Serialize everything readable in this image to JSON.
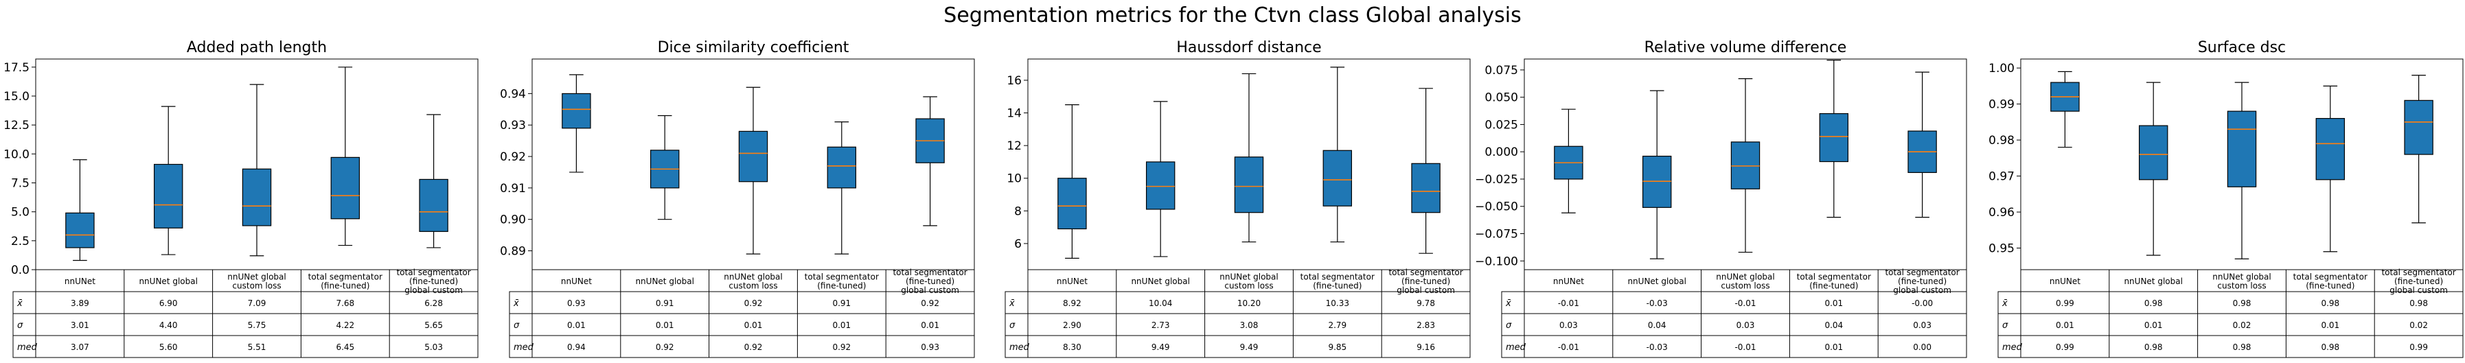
{
  "figure_title": "Segmentation metrics for the Ctvn class Global analysis",
  "row_labels": [
    "x̄",
    "σ",
    "med"
  ],
  "colors": {
    "box_fill": "#1f77b4",
    "median_line": "#ff7f0e",
    "edge": "#000000"
  },
  "chart_data": [
    {
      "type": "boxplot",
      "title": "Added path length",
      "categories": [
        "nnUNet",
        "nnUNet global",
        "nnUNet global custom loss",
        "total segmentator (fine-tuned)",
        "total segmentator (fine-tuned) global custom"
      ],
      "ylim": [
        0,
        18.2
      ],
      "yticks": [
        0.0,
        2.5,
        5.0,
        7.5,
        10.0,
        12.5,
        15.0,
        17.5
      ],
      "ytick_labels": [
        "0.0",
        "2.5",
        "5.0",
        "7.5",
        "10.0",
        "12.5",
        "15.0",
        "17.5"
      ],
      "boxes": [
        {
          "whislo": 0.8,
          "q1": 1.9,
          "med": 3.0,
          "q3": 4.9,
          "whishi": 9.5
        },
        {
          "whislo": 1.3,
          "q1": 3.6,
          "med": 5.6,
          "q3": 9.1,
          "whishi": 14.1
        },
        {
          "whislo": 1.2,
          "q1": 3.8,
          "med": 5.5,
          "q3": 8.7,
          "whishi": 16.0
        },
        {
          "whislo": 2.1,
          "q1": 4.4,
          "med": 6.4,
          "q3": 9.7,
          "whishi": 17.5
        },
        {
          "whislo": 1.9,
          "q1": 3.3,
          "med": 5.0,
          "q3": 7.8,
          "whishi": 13.4
        }
      ],
      "table": [
        [
          "3.89",
          "6.90",
          "7.09",
          "7.68",
          "6.28"
        ],
        [
          "3.01",
          "4.40",
          "5.75",
          "4.22",
          "5.65"
        ],
        [
          "3.07",
          "5.60",
          "5.51",
          "6.45",
          "5.03"
        ]
      ]
    },
    {
      "type": "boxplot",
      "title": "Dice similarity coefficient",
      "categories": [
        "nnUNet",
        "nnUNet global",
        "nnUNet global custom loss",
        "total segmentator (fine-tuned)",
        "total segmentator (fine-tuned) global custom"
      ],
      "ylim": [
        0.884,
        0.951
      ],
      "yticks": [
        0.89,
        0.9,
        0.91,
        0.92,
        0.93,
        0.94
      ],
      "ytick_labels": [
        "0.89",
        "0.90",
        "0.91",
        "0.92",
        "0.93",
        "0.94"
      ],
      "boxes": [
        {
          "whislo": 0.915,
          "q1": 0.929,
          "med": 0.935,
          "q3": 0.94,
          "whishi": 0.946
        },
        {
          "whislo": 0.9,
          "q1": 0.91,
          "med": 0.916,
          "q3": 0.922,
          "whishi": 0.933
        },
        {
          "whislo": 0.889,
          "q1": 0.912,
          "med": 0.921,
          "q3": 0.928,
          "whishi": 0.942
        },
        {
          "whislo": 0.889,
          "q1": 0.91,
          "med": 0.917,
          "q3": 0.923,
          "whishi": 0.931
        },
        {
          "whislo": 0.898,
          "q1": 0.918,
          "med": 0.925,
          "q3": 0.932,
          "whishi": 0.939
        }
      ],
      "table": [
        [
          "0.93",
          "0.91",
          "0.92",
          "0.91",
          "0.92"
        ],
        [
          "0.01",
          "0.01",
          "0.01",
          "0.01",
          "0.01"
        ],
        [
          "0.94",
          "0.92",
          "0.92",
          "0.92",
          "0.93"
        ]
      ]
    },
    {
      "type": "boxplot",
      "title": "Haussdorf distance",
      "categories": [
        "nnUNet",
        "nnUNet global",
        "nnUNet global custom loss",
        "total segmentator (fine-tuned)",
        "total segmentator (fine-tuned) global custom"
      ],
      "ylim": [
        4.4,
        17.3
      ],
      "yticks": [
        6,
        8,
        10,
        12,
        14,
        16
      ],
      "ytick_labels": [
        "6",
        "8",
        "10",
        "12",
        "14",
        "16"
      ],
      "boxes": [
        {
          "whislo": 5.1,
          "q1": 6.9,
          "med": 8.3,
          "q3": 10.0,
          "whishi": 14.5
        },
        {
          "whislo": 5.2,
          "q1": 8.1,
          "med": 9.5,
          "q3": 11.0,
          "whishi": 14.7
        },
        {
          "whislo": 6.1,
          "q1": 7.9,
          "med": 9.5,
          "q3": 11.3,
          "whishi": 16.4
        },
        {
          "whislo": 6.1,
          "q1": 8.3,
          "med": 9.9,
          "q3": 11.7,
          "whishi": 16.8
        },
        {
          "whislo": 5.4,
          "q1": 7.9,
          "med": 9.2,
          "q3": 10.9,
          "whishi": 15.5
        }
      ],
      "table": [
        [
          "8.92",
          "10.04",
          "10.20",
          "10.33",
          "9.78"
        ],
        [
          "2.90",
          "2.73",
          "3.08",
          "2.79",
          "2.83"
        ],
        [
          "8.30",
          "9.49",
          "9.49",
          "9.85",
          "9.16"
        ]
      ]
    },
    {
      "type": "boxplot",
      "title": "Relative volume difference",
      "categories": [
        "nnUNet",
        "nnUNet global",
        "nnUNet global custom loss",
        "total segmentator (fine-tuned)",
        "total segmentator (fine-tuned) global custom"
      ],
      "ylim": [
        -0.108,
        0.085
      ],
      "yticks": [
        -0.1,
        -0.075,
        -0.05,
        -0.025,
        0.0,
        0.025,
        0.05,
        0.075
      ],
      "ytick_labels": [
        "−0.100",
        "−0.075",
        "−0.050",
        "−0.025",
        "0.000",
        "0.025",
        "0.050",
        "0.075"
      ],
      "boxes": [
        {
          "whislo": -0.056,
          "q1": -0.025,
          "med": -0.01,
          "q3": 0.005,
          "whishi": 0.039
        },
        {
          "whislo": -0.098,
          "q1": -0.051,
          "med": -0.027,
          "q3": -0.004,
          "whishi": 0.056
        },
        {
          "whislo": -0.092,
          "q1": -0.034,
          "med": -0.013,
          "q3": 0.009,
          "whishi": 0.067
        },
        {
          "whislo": -0.06,
          "q1": -0.009,
          "med": 0.014,
          "q3": 0.035,
          "whishi": 0.084
        },
        {
          "whislo": -0.06,
          "q1": -0.019,
          "med": 0.0,
          "q3": 0.019,
          "whishi": 0.073
        }
      ],
      "table": [
        [
          "-0.01",
          "-0.03",
          "-0.01",
          "0.01",
          "-0.00"
        ],
        [
          "0.03",
          "0.04",
          "0.03",
          "0.04",
          "0.03"
        ],
        [
          "-0.01",
          "-0.03",
          "-0.01",
          "0.01",
          "0.00"
        ]
      ]
    },
    {
      "type": "boxplot",
      "title": "Surface dsc",
      "categories": [
        "nnUNet",
        "nnUNet global",
        "nnUNet global custom loss",
        "total segmentator (fine-tuned)",
        "total segmentator (fine-tuned) global custom"
      ],
      "ylim": [
        0.944,
        1.0025
      ],
      "yticks": [
        0.95,
        0.96,
        0.97,
        0.98,
        0.99,
        1.0
      ],
      "ytick_labels": [
        "0.95",
        "0.96",
        "0.97",
        "0.98",
        "0.99",
        "1.00"
      ],
      "boxes": [
        {
          "whislo": 0.978,
          "q1": 0.988,
          "med": 0.992,
          "q3": 0.996,
          "whishi": 0.999
        },
        {
          "whislo": 0.948,
          "q1": 0.969,
          "med": 0.976,
          "q3": 0.984,
          "whishi": 0.996
        },
        {
          "whislo": 0.947,
          "q1": 0.967,
          "med": 0.983,
          "q3": 0.988,
          "whishi": 0.996
        },
        {
          "whislo": 0.949,
          "q1": 0.969,
          "med": 0.979,
          "q3": 0.986,
          "whishi": 0.995
        },
        {
          "whislo": 0.957,
          "q1": 0.976,
          "med": 0.985,
          "q3": 0.991,
          "whishi": 0.998
        }
      ],
      "table": [
        [
          "0.99",
          "0.98",
          "0.98",
          "0.98",
          "0.98"
        ],
        [
          "0.01",
          "0.01",
          "0.02",
          "0.01",
          "0.02"
        ],
        [
          "0.99",
          "0.98",
          "0.98",
          "0.98",
          "0.99"
        ]
      ]
    }
  ]
}
